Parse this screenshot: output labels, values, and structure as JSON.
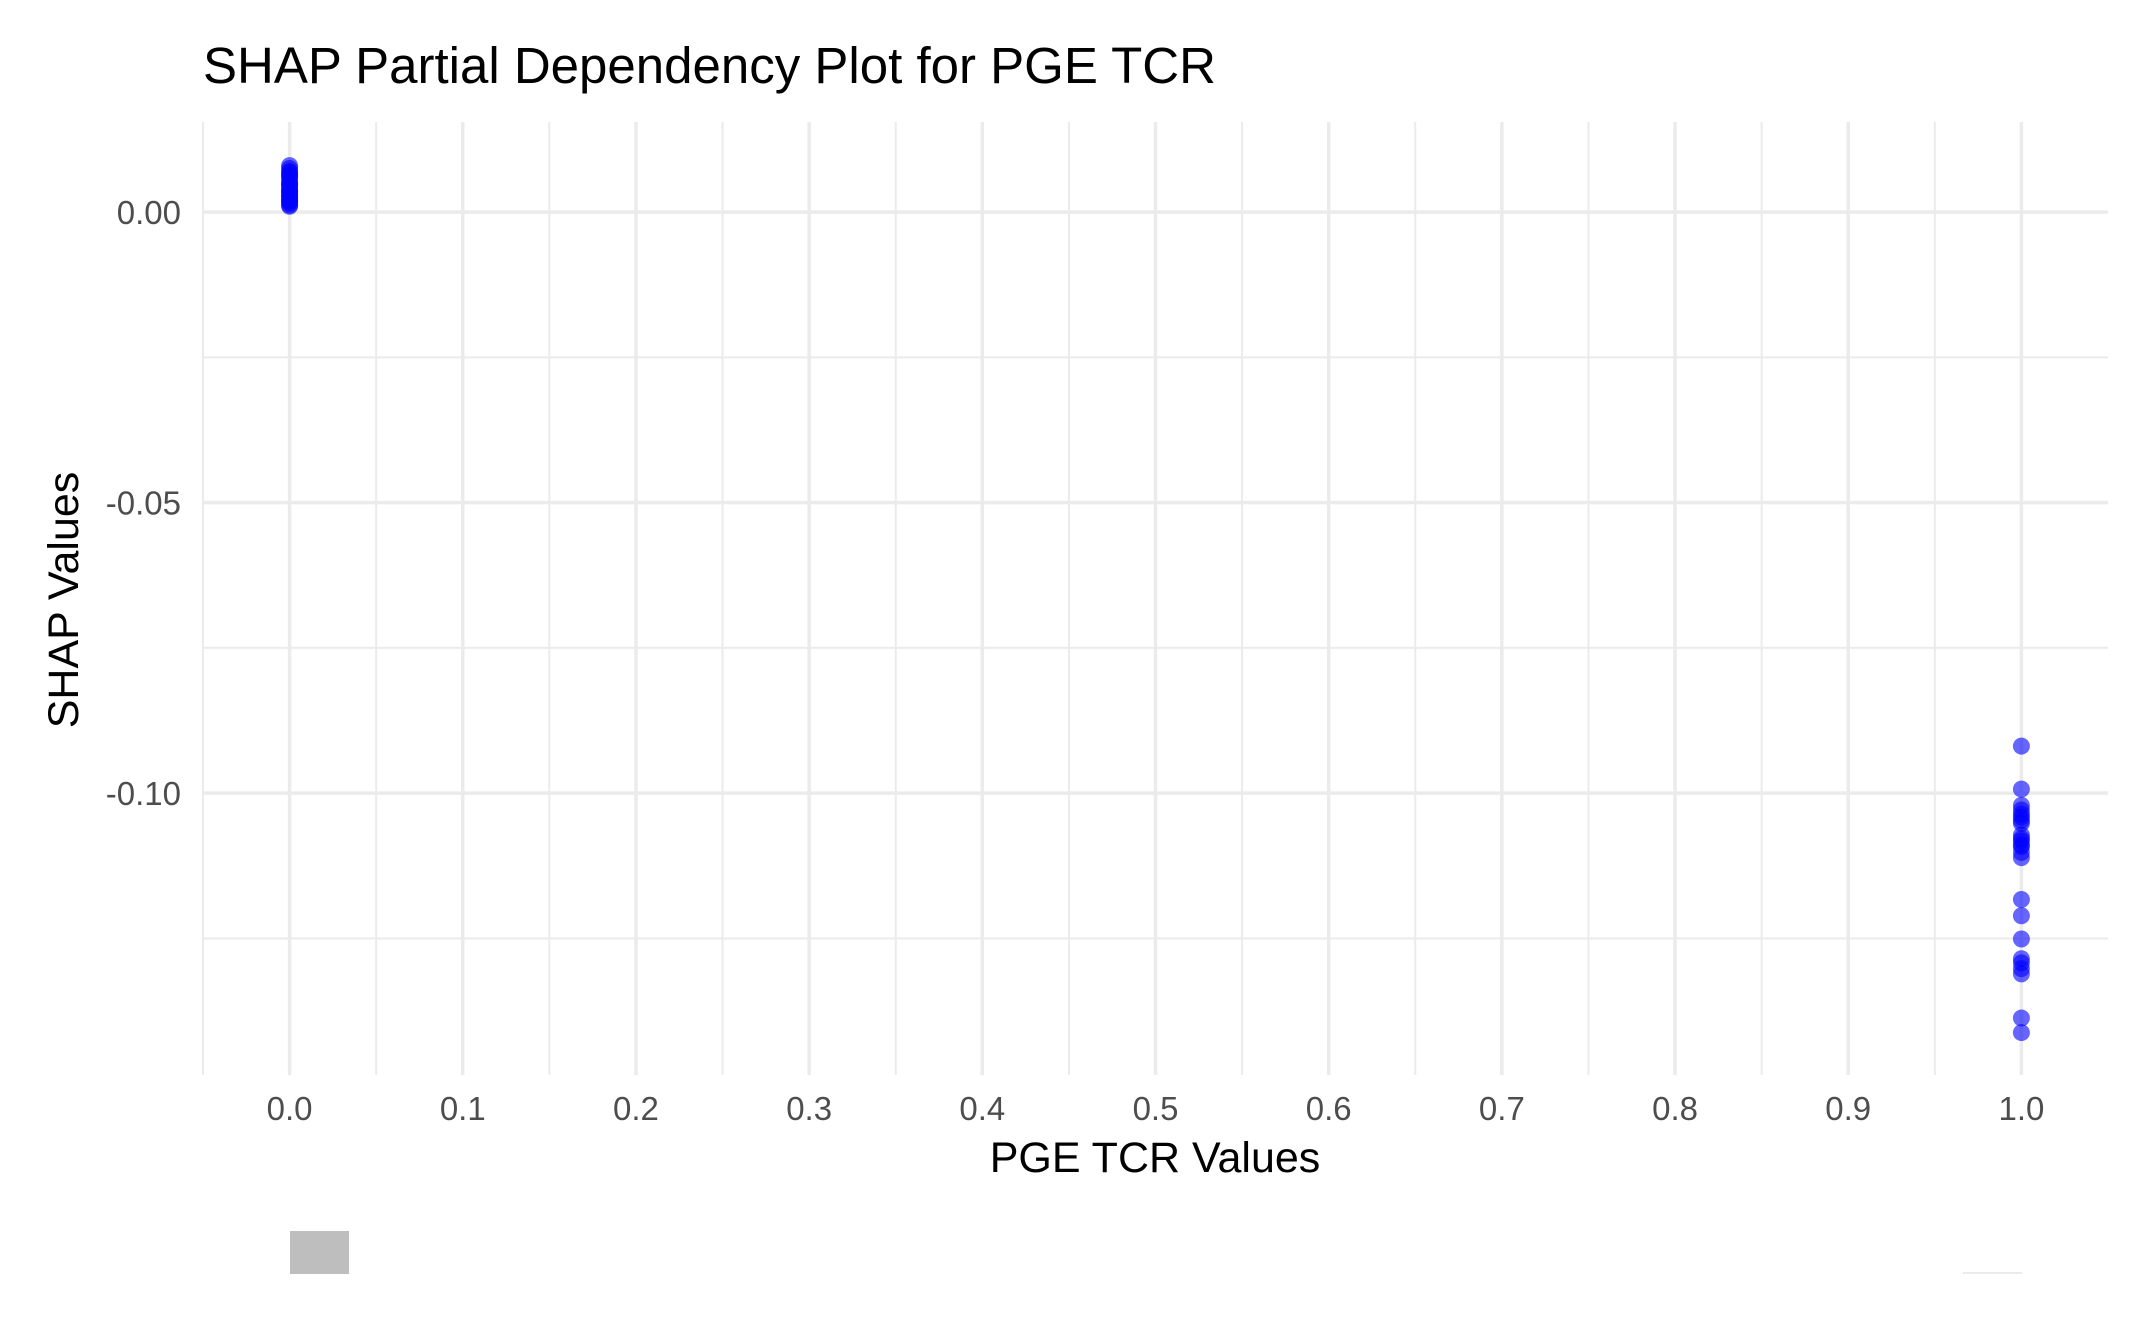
{
  "chart_data": {
    "type": "scatter",
    "title": "SHAP Partial Dependency Plot for PGE TCR",
    "xlabel": "PGE TCR Values",
    "ylabel": "SHAP Values",
    "xlim": [
      -0.05,
      1.05
    ],
    "ylim": [
      -0.1485,
      0.0155
    ],
    "x_ticks": [
      0.0,
      0.1,
      0.2,
      0.3,
      0.4,
      0.5,
      0.6,
      0.7,
      0.8,
      0.9,
      1.0
    ],
    "x_tick_labels": [
      "0.0",
      "0.1",
      "0.2",
      "0.3",
      "0.4",
      "0.5",
      "0.6",
      "0.7",
      "0.8",
      "0.9",
      "1.0"
    ],
    "y_ticks": [
      0.0,
      -0.05,
      -0.1
    ],
    "y_tick_labels": [
      "0.00",
      "-0.05",
      "-0.10"
    ],
    "grid": true,
    "point_color": "#0000ff",
    "point_opacity": 0.6,
    "series": [
      {
        "x": [
          0,
          0,
          0,
          0,
          0,
          0,
          0,
          0,
          0,
          0,
          0,
          0,
          0,
          0,
          0,
          0,
          0,
          0,
          0,
          0,
          0,
          0,
          0,
          0,
          0,
          0,
          1,
          1,
          1,
          1,
          1,
          1,
          1,
          1,
          1,
          1,
          1,
          1,
          1,
          1,
          1,
          1,
          1,
          1,
          1,
          1,
          1,
          1,
          1,
          1
        ],
        "y": [
          0.008,
          0.0075,
          0.007,
          0.0065,
          0.006,
          0.0055,
          0.005,
          0.0047,
          0.0044,
          0.004,
          0.0037,
          0.0034,
          0.003,
          0.0027,
          0.0024,
          0.0021,
          0.0018,
          0.0015,
          0.0012,
          0.001,
          0.0062,
          0.0049,
          0.0036,
          0.0028,
          0.0019,
          0.0068,
          -0.0919,
          -0.0993,
          -0.1021,
          -0.1029,
          -0.1036,
          -0.1041,
          -0.1047,
          -0.1052,
          -0.1072,
          -0.1078,
          -0.1082,
          -0.1089,
          -0.1092,
          -0.1111,
          -0.1183,
          -0.1211,
          -0.1251,
          -0.1285,
          -0.1292,
          -0.1302,
          -0.1311,
          -0.1387,
          -0.1412,
          -0.1102
        ]
      }
    ]
  }
}
